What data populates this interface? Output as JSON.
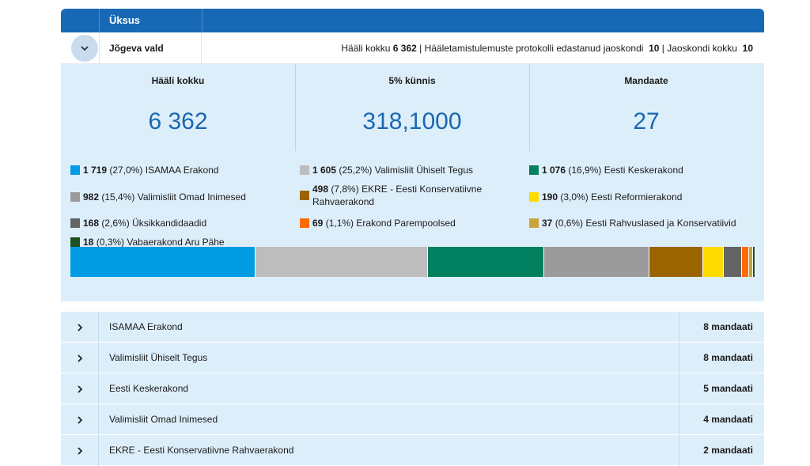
{
  "header": {
    "column_label": "Üksus"
  },
  "unit": {
    "name": "Jõgeva vald",
    "summary_votes_label": "Hääli kokku",
    "summary_votes_value": "6 362",
    "summary_protocols_label": "Hääletamistulemuste protokolli edastanud jaoskondi",
    "summary_protocols_value": "10",
    "summary_districts_label": "Jaoskondi kokku",
    "summary_districts_value": "10"
  },
  "stats": [
    {
      "label": "Hääli kokku",
      "value": "6 362"
    },
    {
      "label": "5% künnis",
      "value": "318,1000"
    },
    {
      "label": "Mandaate",
      "value": "27"
    }
  ],
  "legend": [
    {
      "votes": "1 719",
      "pct": "(27,0%)",
      "name": "ISAMAA Erakond",
      "color": "#009be2"
    },
    {
      "votes": "1 605",
      "pct": "(25,2%)",
      "name": "Valimisliit Ühiselt Tegus",
      "color": "#bdbdbd"
    },
    {
      "votes": "1 076",
      "pct": "(16,9%)",
      "name": "Eesti Keskerakond",
      "color": "#00805f"
    },
    {
      "votes": "982",
      "pct": "(15,4%)",
      "name": "Valimisliit Omad Inimesed",
      "color": "#9b9b9b"
    },
    {
      "votes": "498",
      "pct": "(7,8%)",
      "name": "EKRE - Eesti Konservatiivne Rahvaerakond",
      "color": "#9a6400"
    },
    {
      "votes": "190",
      "pct": "(3,0%)",
      "name": "Eesti Reformierakond",
      "color": "#ffdc00"
    },
    {
      "votes": "168",
      "pct": "(2,6%)",
      "name": "Üksikkandidaadid",
      "color": "#646464"
    },
    {
      "votes": "69",
      "pct": "(1,1%)",
      "name": "Erakond Parempoolsed",
      "color": "#ff6a00"
    },
    {
      "votes": "37",
      "pct": "(0,6%)",
      "name": "Eesti Rahvuslased ja Konservatiivid",
      "color": "#c9a43c"
    },
    {
      "votes": "18",
      "pct": "(0,3%)",
      "name": "Vabaerakond Aru Pähe",
      "color": "#1c5020"
    }
  ],
  "parties": [
    {
      "name": "ISAMAA Erakond",
      "seats": "8 mandaati"
    },
    {
      "name": "Valimisliit Ühiselt Tegus",
      "seats": "8 mandaati"
    },
    {
      "name": "Eesti Keskerakond",
      "seats": "5 mandaati"
    },
    {
      "name": "Valimisliit Omad Inimesed",
      "seats": "4 mandaati"
    },
    {
      "name": "EKRE - Eesti Konservatiivne Rahvaerakond",
      "seats": "2 mandaati"
    }
  ]
}
